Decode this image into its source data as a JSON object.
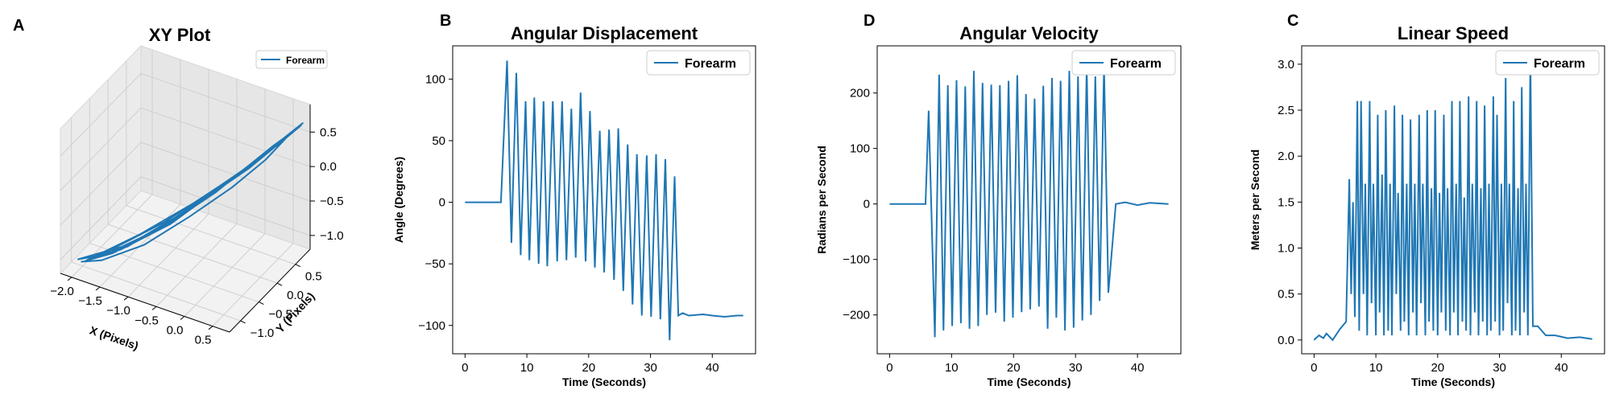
{
  "chart_data": [
    {
      "panel_label": "A",
      "type": "line3d",
      "title": "XY Plot",
      "xlabel": "X (Pixels)",
      "ylabel": "Y (Pixels)",
      "zlabel": "",
      "xlim": [
        -2.2,
        0.8
      ],
      "ylim": [
        -1.3,
        0.9
      ],
      "zlim": [
        -1.2,
        0.9
      ],
      "xticks": [
        "−2.0",
        "−1.5",
        "−1.0",
        "−0.5",
        "0.0",
        "0.5"
      ],
      "yticks": [
        "−1.0",
        "−0.5",
        "0.0",
        "0.5"
      ],
      "zticks": [
        "−1.0",
        "−0.5",
        "0.0",
        "0.5"
      ],
      "legend": [
        "Forearm"
      ],
      "legend_position": "upper right",
      "grid": true,
      "color": "#1f77b4",
      "trajectory": [
        [
          -1.9,
          -1.2,
          -1.0
        ],
        [
          -1.6,
          -1.1,
          -0.95
        ],
        [
          -1.1,
          -0.7,
          -0.8
        ],
        [
          -0.6,
          -0.25,
          -0.5
        ],
        [
          -0.1,
          0.15,
          -0.15
        ],
        [
          0.3,
          0.45,
          0.2
        ],
        [
          0.6,
          0.7,
          0.55
        ],
        [
          0.3,
          0.5,
          0.3
        ],
        [
          -0.2,
          0.05,
          -0.1
        ],
        [
          -0.8,
          -0.45,
          -0.55
        ],
        [
          -1.4,
          -0.9,
          -0.85
        ],
        [
          -1.75,
          -1.1,
          -0.95
        ],
        [
          -1.3,
          -0.85,
          -0.8
        ],
        [
          -0.7,
          -0.35,
          -0.45
        ],
        [
          -0.1,
          0.2,
          -0.05
        ],
        [
          0.45,
          0.6,
          0.4
        ],
        [
          0.7,
          0.8,
          0.62
        ],
        [
          0.2,
          0.4,
          0.2
        ],
        [
          -0.5,
          -0.1,
          -0.3
        ],
        [
          -1.2,
          -0.65,
          -0.7
        ],
        [
          -1.85,
          -1.15,
          -1.0
        ],
        [
          -1.5,
          -0.95,
          -0.9
        ],
        [
          -0.9,
          -0.5,
          -0.6
        ],
        [
          -0.3,
          0.0,
          -0.2
        ],
        [
          0.35,
          0.55,
          0.35
        ],
        [
          0.65,
          0.75,
          0.58
        ],
        [
          0.1,
          0.3,
          0.1
        ],
        [
          -0.6,
          -0.2,
          -0.4
        ],
        [
          -1.3,
          -0.8,
          -0.8
        ],
        [
          -1.95,
          -1.2,
          -0.98
        ],
        [
          -1.6,
          -1.0,
          -0.92
        ],
        [
          -1.0,
          -0.55,
          -0.65
        ],
        [
          -0.2,
          0.1,
          -0.1
        ],
        [
          0.5,
          0.62,
          0.45
        ],
        [
          0.72,
          0.82,
          0.65
        ],
        [
          0.0,
          0.25,
          0.05
        ],
        [
          -0.9,
          -0.45,
          -0.55
        ],
        [
          -1.7,
          -1.05,
          -0.95
        ]
      ]
    },
    {
      "panel_label": "B",
      "type": "line",
      "title": "Angular Displacement",
      "xlabel": "Time (Seconds)",
      "ylabel": "Angle (Degrees)",
      "xlim": [
        -2,
        47
      ],
      "ylim": [
        -123,
        127
      ],
      "xticks": [
        0,
        10,
        20,
        30,
        40
      ],
      "yticks": [
        -100,
        -50,
        0,
        50,
        100
      ],
      "legend": [
        "Forearm"
      ],
      "legend_position": "upper right",
      "color": "#1f77b4",
      "series": [
        {
          "name": "Forearm",
          "x": [
            0,
            5.8,
            6.8,
            7.5,
            8.3,
            9.0,
            9.8,
            10.4,
            11.2,
            11.9,
            12.7,
            13.3,
            14.2,
            14.9,
            15.7,
            16.4,
            17.2,
            17.9,
            18.7,
            19.5,
            20.2,
            21.0,
            21.8,
            22.5,
            23.3,
            24.1,
            24.8,
            25.6,
            26.3,
            27.1,
            27.8,
            28.6,
            29.4,
            30.1,
            30.9,
            31.6,
            32.4,
            33.1,
            33.9,
            34.5,
            35.2,
            36.2,
            38.5,
            40,
            42,
            44,
            45
          ],
          "y": [
            0,
            0,
            115,
            -33,
            105,
            -43,
            82,
            -47,
            85,
            -50,
            82,
            -52,
            82,
            -48,
            82,
            -47,
            76,
            -45,
            89,
            -48,
            74,
            -53,
            58,
            -57,
            59,
            -63,
            60,
            -72,
            47,
            -83,
            39,
            -92,
            38,
            -93,
            39,
            -95,
            35,
            -112,
            21,
            -92,
            -90,
            -92,
            -91,
            -92,
            -93,
            -92,
            -92
          ]
        }
      ]
    },
    {
      "panel_label": "D",
      "type": "line",
      "title": "Angular Velocity",
      "xlabel": "Time (Seconds)",
      "ylabel": "Radians per Second",
      "xlim": [
        -2,
        47
      ],
      "ylim": [
        -270,
        285
      ],
      "xticks": [
        0,
        10,
        20,
        30,
        40
      ],
      "yticks": [
        -200,
        -100,
        0,
        100,
        200
      ],
      "legend": [
        "Forearm"
      ],
      "legend_position": "upper right",
      "color": "#1f77b4",
      "series": [
        {
          "name": "Forearm",
          "x": [
            0,
            5.8,
            6.3,
            7.3,
            8.0,
            8.7,
            9.4,
            10.1,
            10.8,
            11.5,
            12.2,
            12.9,
            13.6,
            14.3,
            15.0,
            15.7,
            16.4,
            17.1,
            17.8,
            18.5,
            19.2,
            19.9,
            20.6,
            21.3,
            22.0,
            22.7,
            23.4,
            24.1,
            24.8,
            25.5,
            26.2,
            26.9,
            27.6,
            28.3,
            29.0,
            29.7,
            30.4,
            31.1,
            31.8,
            32.5,
            33.2,
            33.9,
            34.6,
            35.3,
            36.5,
            38,
            40,
            42,
            45
          ],
          "y": [
            0,
            0,
            168,
            -240,
            233,
            -228,
            214,
            -220,
            223,
            -215,
            212,
            -225,
            240,
            -220,
            218,
            -200,
            215,
            -196,
            214,
            -212,
            222,
            -205,
            232,
            -195,
            198,
            -190,
            190,
            -185,
            213,
            -225,
            227,
            -205,
            222,
            -228,
            240,
            -223,
            230,
            -210,
            250,
            -200,
            230,
            -175,
            250,
            -160,
            0,
            3,
            -2,
            2,
            0
          ]
        }
      ]
    },
    {
      "panel_label": "C",
      "type": "line",
      "title": "Linear Speed",
      "xlabel": "Time (Seconds)",
      "ylabel": "Meters per Second",
      "xlim": [
        -2,
        47
      ],
      "ylim": [
        -0.15,
        3.2
      ],
      "xticks": [
        0,
        10,
        20,
        30,
        40
      ],
      "yticks": [
        0.0,
        0.5,
        1.0,
        1.5,
        2.0,
        2.5,
        3.0
      ],
      "legend": [
        "Forearm"
      ],
      "legend_position": "upper right",
      "color": "#1f77b4",
      "series": [
        {
          "name": "Forearm",
          "x": [
            0,
            0.8,
            1.5,
            2.0,
            3.0,
            4.2,
            5.2,
            5.7,
            6.0,
            6.3,
            6.6,
            7.0,
            7.3,
            7.6,
            8.0,
            8.3,
            8.6,
            9.0,
            9.3,
            9.6,
            10.0,
            10.3,
            10.6,
            11.0,
            11.3,
            11.6,
            12.0,
            12.3,
            12.6,
            13.0,
            13.3,
            13.6,
            14.0,
            14.3,
            14.6,
            15.0,
            15.3,
            15.6,
            16.0,
            16.3,
            16.6,
            17.0,
            17.3,
            17.6,
            18.0,
            18.3,
            18.6,
            19.0,
            19.3,
            19.6,
            20.0,
            20.3,
            20.6,
            21.0,
            21.3,
            21.6,
            22.0,
            22.3,
            22.6,
            23.0,
            23.3,
            23.6,
            24.0,
            24.3,
            24.6,
            25.0,
            25.3,
            25.6,
            26.0,
            26.3,
            26.6,
            27.0,
            27.3,
            27.6,
            28.0,
            28.3,
            28.6,
            29.0,
            29.3,
            29.6,
            30.0,
            30.3,
            30.6,
            31.0,
            31.3,
            31.6,
            32.0,
            32.3,
            32.6,
            33.0,
            33.3,
            33.6,
            34.0,
            34.3,
            34.6,
            35.0,
            35.4,
            36.2,
            37.5,
            39,
            41,
            43,
            45
          ],
          "y": [
            0.0,
            0.05,
            0.02,
            0.07,
            0.0,
            0.12,
            0.2,
            1.75,
            0.5,
            1.5,
            0.25,
            2.6,
            0.1,
            2.6,
            0.5,
            1.7,
            0.05,
            2.6,
            0.4,
            1.7,
            0.05,
            2.45,
            0.3,
            1.8,
            0.05,
            2.5,
            0.1,
            1.7,
            0.05,
            2.55,
            0.5,
            1.6,
            0.1,
            2.45,
            0.2,
            1.7,
            0.05,
            2.4,
            0.3,
            1.7,
            0.05,
            2.45,
            0.4,
            1.7,
            0.05,
            2.5,
            0.2,
            1.65,
            0.1,
            2.5,
            0.05,
            1.6,
            0.3,
            2.45,
            0.1,
            1.65,
            0.05,
            2.6,
            0.3,
            1.7,
            0.05,
            2.6,
            0.2,
            1.55,
            0.1,
            2.65,
            0.05,
            1.7,
            0.3,
            2.6,
            0.05,
            1.65,
            0.2,
            2.55,
            0.05,
            1.7,
            0.1,
            2.65,
            0.2,
            2.45,
            0.05,
            1.7,
            0.1,
            2.85,
            0.4,
            1.7,
            0.05,
            2.6,
            0.1,
            1.65,
            0.05,
            2.75,
            0.3,
            1.7,
            0.05,
            3.1,
            0.15,
            0.15,
            0.05,
            0.05,
            0.02,
            0.03,
            0.01
          ]
        }
      ]
    }
  ]
}
